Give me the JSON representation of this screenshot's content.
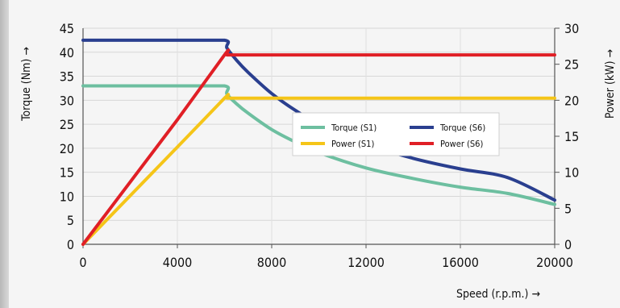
{
  "chart_data": {
    "type": "line",
    "x": [
      0,
      4000,
      6000,
      6100,
      6500,
      7000,
      8000,
      9000,
      10000,
      12000,
      14000,
      16000,
      18000,
      20000
    ],
    "x_ticks": [
      "0",
      "4000",
      "8000",
      "12000",
      "16000",
      "20000"
    ],
    "xlim": [
      0,
      20000
    ],
    "xlabel": "Speed (r.p.m.) →",
    "y_left": {
      "label": "Torque (Nm) →",
      "lim": [
        0,
        45
      ],
      "ticks": [
        "0",
        "5",
        "10",
        "15",
        "20",
        "25",
        "30",
        "35",
        "40",
        "45"
      ]
    },
    "y_right": {
      "label": "Power (kW) →",
      "lim": [
        0,
        30
      ],
      "ticks": [
        "0",
        "5",
        "10",
        "15",
        "20",
        "25",
        "30"
      ]
    },
    "grid": true,
    "legend": "center-right",
    "series": [
      {
        "name": "Torque (S1)",
        "axis": "left",
        "color": "#6dbfa0",
        "values": [
          33,
          33,
          33,
          31.3,
          29.3,
          27.3,
          23.9,
          21.3,
          19.1,
          15.9,
          13.7,
          11.9,
          10.6,
          8.3
        ]
      },
      {
        "name": "Power (S1)",
        "axis": "right",
        "color": "#f5c518",
        "values": [
          0,
          13.5,
          20.3,
          20.3,
          20.3,
          20.3,
          20.3,
          20.3,
          20.3,
          20.3,
          20.3,
          20.3,
          20.3,
          20.3
        ]
      },
      {
        "name": "Torque (S6)",
        "axis": "left",
        "color": "#2a3f8f",
        "values": [
          42.5,
          42.5,
          42.5,
          40.9,
          38.4,
          35.8,
          31.4,
          27.9,
          25.1,
          20.9,
          17.9,
          15.7,
          13.9,
          9.2
        ]
      },
      {
        "name": "Power (S6)",
        "axis": "right",
        "color": "#e01f26",
        "values": [
          0,
          17.3,
          26.3,
          26.3,
          26.3,
          26.3,
          26.3,
          26.3,
          26.3,
          26.3,
          26.3,
          26.3,
          26.3,
          26.3
        ]
      }
    ]
  }
}
